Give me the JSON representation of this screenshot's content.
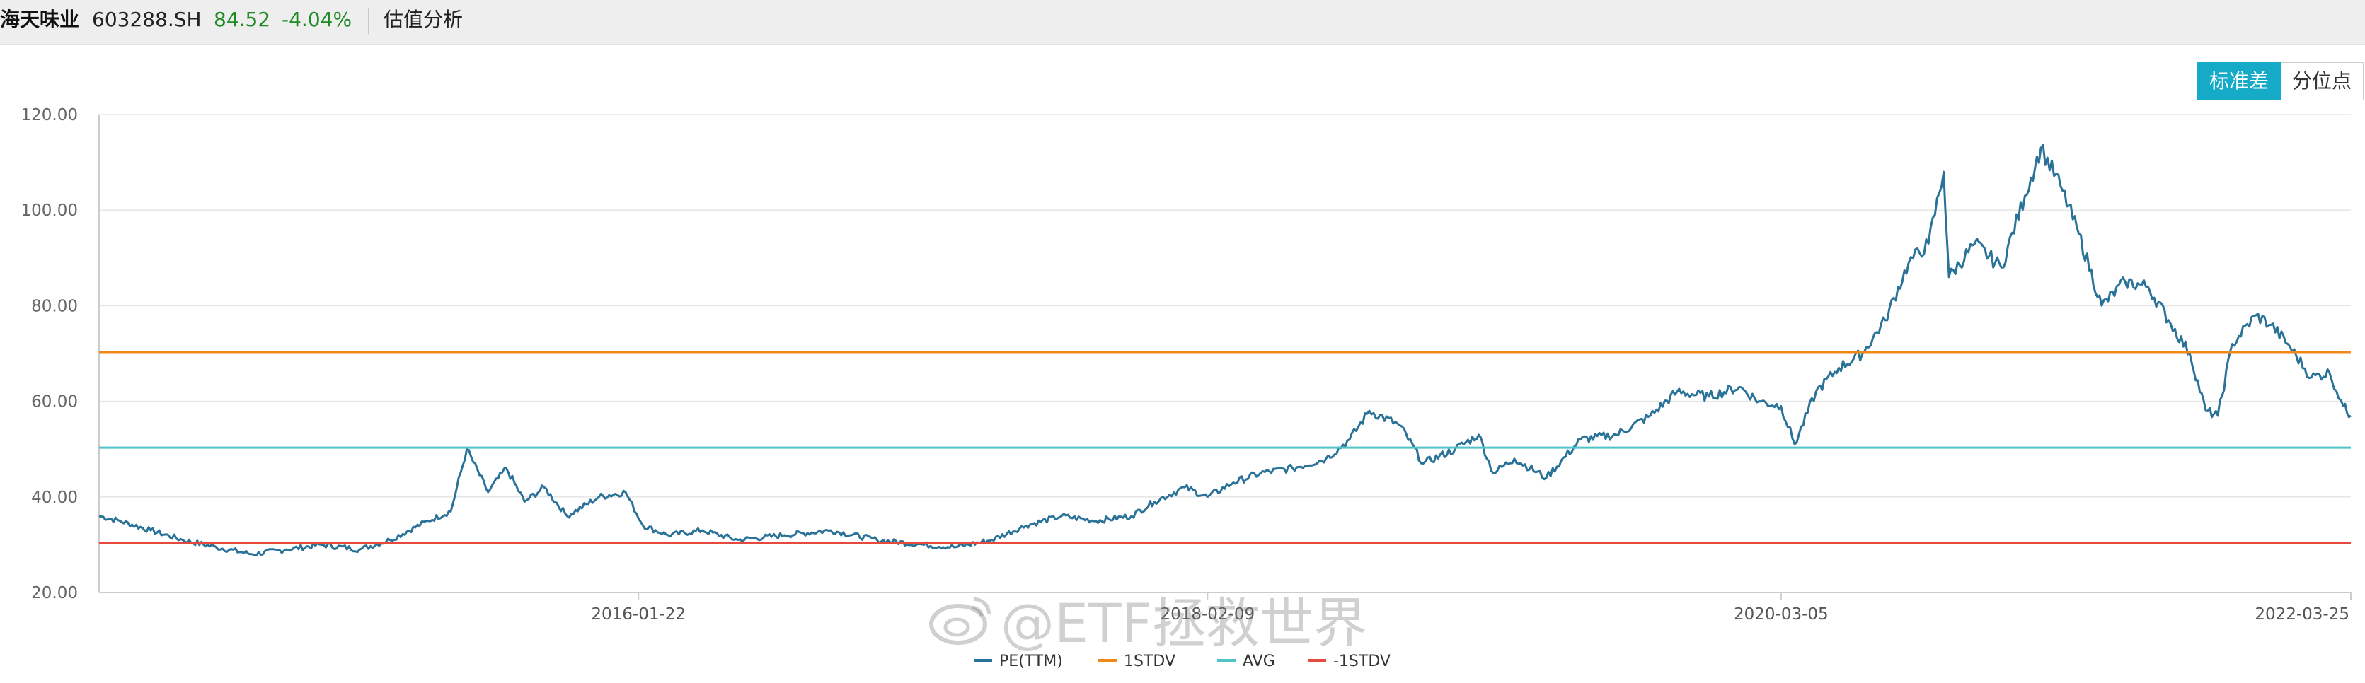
{
  "header": {
    "stock_name": "海天味业",
    "stock_code": "603288.SH",
    "price": "84.52",
    "change": "-4.04%",
    "page_title": "估值分析"
  },
  "toggle": {
    "std_label": "标准差",
    "pct_label": "分位点",
    "selected": "标准差"
  },
  "watermark": {
    "text": "@ETF拯救世界"
  },
  "colors": {
    "pe": "#2a7297",
    "plus1std": "#f0891a",
    "avg": "#4fc4c9",
    "minus1std": "#e64a3d",
    "toggle_active": "#14aac8",
    "price_text": "#1e8a22"
  },
  "chart_data": {
    "type": "line",
    "title": "",
    "xlabel": "",
    "ylabel": "",
    "ylim": [
      20,
      120
    ],
    "yticks": [
      "20.00",
      "40.00",
      "60.00",
      "80.00",
      "100.00",
      "120.00"
    ],
    "x_range": [
      "2014-02-11",
      "2022-03-25"
    ],
    "xticks": [
      "2016-01-22",
      "2018-02-09",
      "2020-03-05",
      "2022-03-25"
    ],
    "grid": "horizontal",
    "legend_position": "bottom",
    "series": [
      {
        "name": "PE(TTM)",
        "color": "#2a7297",
        "points": [
          [
            "2014-02-11",
            36
          ],
          [
            "2014-03-10",
            35
          ],
          [
            "2014-04-20",
            33
          ],
          [
            "2014-06-01",
            31
          ],
          [
            "2014-07-15",
            29.5
          ],
          [
            "2014-09-01",
            28
          ],
          [
            "2014-10-15",
            29
          ],
          [
            "2014-12-01",
            30
          ],
          [
            "2015-01-20",
            29
          ],
          [
            "2015-03-01",
            31
          ],
          [
            "2015-04-20",
            35
          ],
          [
            "2015-05-20",
            37
          ],
          [
            "2015-06-10",
            50
          ],
          [
            "2015-07-08",
            41
          ],
          [
            "2015-08-01",
            46
          ],
          [
            "2015-08-25",
            39
          ],
          [
            "2015-09-20",
            42
          ],
          [
            "2015-10-20",
            36
          ],
          [
            "2015-12-01",
            40
          ],
          [
            "2016-01-05",
            41
          ],
          [
            "2016-01-28",
            34
          ],
          [
            "2016-03-01",
            32
          ],
          [
            "2016-04-15",
            33
          ],
          [
            "2016-06-01",
            31
          ],
          [
            "2016-08-01",
            32
          ],
          [
            "2016-10-01",
            33
          ],
          [
            "2016-12-01",
            31
          ],
          [
            "2017-02-01",
            30
          ],
          [
            "2017-03-15",
            29.5
          ],
          [
            "2017-05-01",
            31
          ],
          [
            "2017-06-15",
            34
          ],
          [
            "2017-08-01",
            36
          ],
          [
            "2017-09-15",
            35
          ],
          [
            "2017-11-01",
            36
          ],
          [
            "2017-12-01",
            39
          ],
          [
            "2018-01-10",
            42
          ],
          [
            "2018-02-09",
            40
          ],
          [
            "2018-03-15",
            43
          ],
          [
            "2018-04-20",
            45
          ],
          [
            "2018-06-01",
            46
          ],
          [
            "2018-07-15",
            48
          ],
          [
            "2018-08-15",
            52
          ],
          [
            "2018-09-10",
            58
          ],
          [
            "2018-10-20",
            55
          ],
          [
            "2018-11-20",
            47
          ],
          [
            "2019-01-01",
            50
          ],
          [
            "2019-02-01",
            53
          ],
          [
            "2019-02-20",
            45
          ],
          [
            "2019-03-20",
            48
          ],
          [
            "2019-05-01",
            44
          ],
          [
            "2019-06-15",
            52
          ],
          [
            "2019-08-01",
            53
          ],
          [
            "2019-09-15",
            57
          ],
          [
            "2019-10-20",
            62
          ],
          [
            "2019-12-01",
            61
          ],
          [
            "2020-01-10",
            63
          ],
          [
            "2020-02-05",
            60
          ],
          [
            "2020-03-05",
            59
          ],
          [
            "2020-03-23",
            51
          ],
          [
            "2020-04-20",
            62
          ],
          [
            "2020-05-20",
            67
          ],
          [
            "2020-06-20",
            70
          ],
          [
            "2020-07-20",
            77
          ],
          [
            "2020-08-20",
            89
          ],
          [
            "2020-09-15",
            93
          ],
          [
            "2020-10-05",
            108
          ],
          [
            "2020-10-12",
            86
          ],
          [
            "2020-11-15",
            93
          ],
          [
            "2020-12-20",
            88
          ],
          [
            "2021-01-20",
            103
          ],
          [
            "2021-02-10",
            113
          ],
          [
            "2021-03-08",
            105
          ],
          [
            "2021-04-01",
            95
          ],
          [
            "2021-05-01",
            80
          ],
          [
            "2021-06-01",
            85
          ],
          [
            "2021-07-01",
            84
          ],
          [
            "2021-07-28",
            77
          ],
          [
            "2021-08-25",
            70
          ],
          [
            "2021-09-15",
            58
          ],
          [
            "2021-10-01",
            57
          ],
          [
            "2021-10-20",
            72
          ],
          [
            "2021-11-20",
            78
          ],
          [
            "2021-12-10",
            76
          ],
          [
            "2022-01-01",
            72
          ],
          [
            "2022-02-01",
            65
          ],
          [
            "2022-02-25",
            66
          ],
          [
            "2022-03-15",
            59
          ],
          [
            "2022-03-25",
            57
          ]
        ]
      },
      {
        "name": "1STDV",
        "color": "#f0891a",
        "constant": 70.3
      },
      {
        "name": "AVG",
        "color": "#4fc4c9",
        "constant": 50.3
      },
      {
        "name": "-1STDV",
        "color": "#e64a3d",
        "constant": 30.4
      }
    ]
  }
}
